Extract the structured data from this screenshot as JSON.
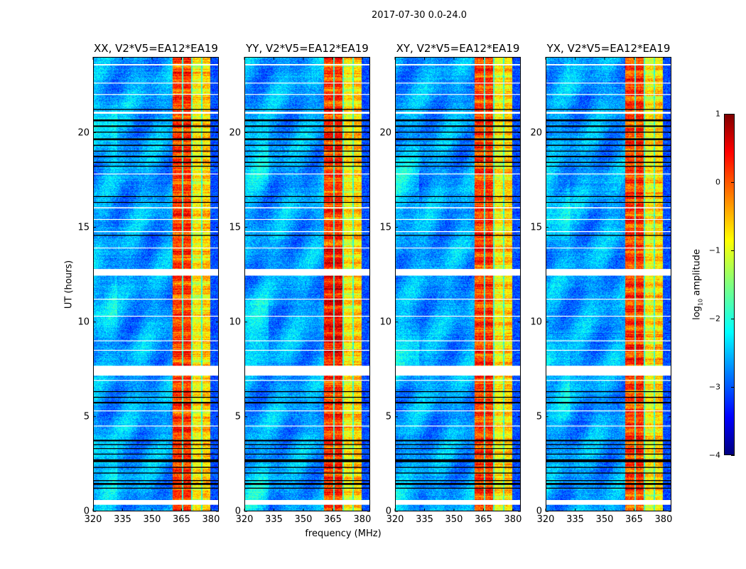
{
  "chart_data": {
    "type": "heatmap",
    "title": "2017-07-30 0.0-24.0",
    "xlabel": "frequency (MHz)",
    "ylabel": "UT (hours)",
    "xlim": [
      320,
      384
    ],
    "ylim": [
      0,
      24
    ],
    "xticks": [
      320,
      335,
      350,
      365,
      380
    ],
    "yticks": [
      0,
      5,
      10,
      15,
      20
    ],
    "colorbar": {
      "label_prefix": "log",
      "label_sub": "10",
      "label_suffix": " amplitude",
      "colormap": "jet",
      "range": [
        -4,
        1
      ],
      "ticks": [
        1,
        0,
        -1,
        -2,
        -3,
        -4
      ]
    },
    "background_level": -2.6,
    "rfi_bands": [
      {
        "from": 360.4,
        "to": 365.1,
        "level": 0.05
      },
      {
        "from": 365.1,
        "to": 365.8,
        "level": -1.9
      },
      {
        "from": 365.8,
        "to": 369.8,
        "level": 0.1
      },
      {
        "from": 369.8,
        "to": 370.5,
        "level": -1.9
      },
      {
        "from": 370.5,
        "to": 374.9,
        "level": -0.85
      },
      {
        "from": 374.9,
        "to": 375.6,
        "level": -1.9
      },
      {
        "from": 375.6,
        "to": 379.6,
        "level": -0.65
      },
      {
        "from": 379.6,
        "to": 384,
        "level": -3.0
      }
    ],
    "flagged_white_hours": [
      [
        23.55,
        23.62
      ],
      [
        22.6,
        22.64
      ],
      [
        22.0,
        22.04
      ],
      [
        21.0,
        21.1
      ],
      [
        17.8,
        17.84
      ],
      [
        16.0,
        16.06
      ],
      [
        15.4,
        15.44
      ],
      [
        14.75,
        14.8
      ],
      [
        13.9,
        13.93
      ],
      [
        12.45,
        12.8
      ],
      [
        11.2,
        11.23
      ],
      [
        10.3,
        10.33
      ],
      [
        9.0,
        9.03
      ],
      [
        8.5,
        8.53
      ],
      [
        7.17,
        7.69
      ],
      [
        6.9,
        6.94
      ],
      [
        5.3,
        5.33
      ],
      [
        4.5,
        4.53
      ],
      [
        0.35,
        0.6
      ]
    ],
    "flagged_black_hours": [
      [
        20.6,
        20.7
      ],
      [
        20.3,
        20.38
      ],
      [
        20.0,
        20.05
      ],
      [
        19.6,
        19.7
      ],
      [
        19.3,
        19.36
      ],
      [
        19.0,
        19.05
      ],
      [
        18.7,
        18.78
      ],
      [
        18.4,
        18.46
      ],
      [
        18.2,
        18.25
      ],
      [
        21.2,
        21.25
      ],
      [
        16.6,
        16.65
      ],
      [
        16.3,
        16.34
      ],
      [
        14.55,
        14.6
      ],
      [
        6.3,
        6.35
      ],
      [
        6.0,
        6.05
      ],
      [
        5.7,
        5.78
      ],
      [
        3.7,
        3.78
      ],
      [
        3.5,
        3.55
      ],
      [
        3.3,
        3.34
      ],
      [
        3.0,
        3.05
      ],
      [
        2.6,
        2.75
      ],
      [
        2.3,
        2.35
      ],
      [
        2.0,
        2.05
      ],
      [
        1.6,
        1.65
      ],
      [
        1.4,
        1.5
      ],
      [
        1.2,
        1.25
      ]
    ],
    "panels": [
      {
        "title": "XX, V2*V5=EA12*EA19"
      },
      {
        "title": "YY, V2*V5=EA12*EA19"
      },
      {
        "title": "XY, V2*V5=EA12*EA19"
      },
      {
        "title": "YX, V2*V5=EA12*EA19"
      }
    ]
  }
}
